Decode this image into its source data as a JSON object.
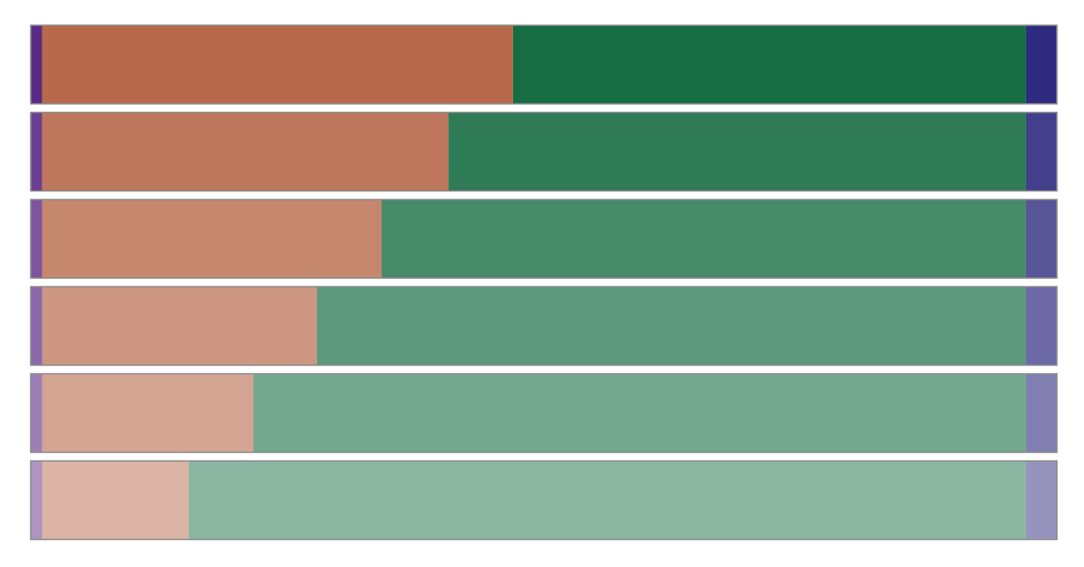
{
  "chart_data": {
    "type": "stacked-bar",
    "orientation": "horizontal",
    "xlim": [
      0,
      100
    ],
    "series": [
      {
        "color": "#5b2a86",
        "values": [
          1.1,
          1.1,
          1.1,
          1.1,
          1.1,
          1.1
        ]
      },
      {
        "color": "#b8694b",
        "values": [
          45.9,
          39.6,
          33.1,
          26.8,
          20.6,
          14.3
        ]
      },
      {
        "color": "#176d44",
        "values": [
          50.0,
          56.3,
          62.8,
          69.1,
          75.3,
          81.6
        ]
      },
      {
        "color": "#2e2a80",
        "values": [
          3.0,
          3.0,
          3.0,
          3.0,
          3.0,
          3.0
        ]
      }
    ],
    "row_opacity": [
      1,
      0.9,
      0.8,
      0.7,
      0.6,
      0.5
    ]
  }
}
